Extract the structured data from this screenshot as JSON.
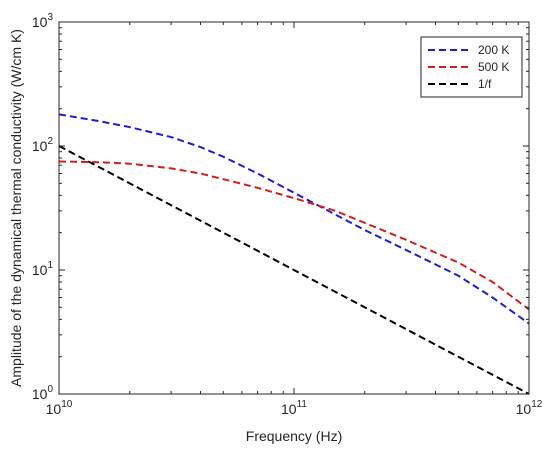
{
  "chart_data": {
    "type": "line",
    "title": "",
    "xlabel": "Frequency (Hz)",
    "ylabel": "Amplitude of the dynamical thermal conductivity (W/cm K)",
    "xscale": "log",
    "yscale": "log",
    "xlim": [
      10000000000.0,
      1000000000000.0
    ],
    "ylim": [
      1,
      1000
    ],
    "grid": false,
    "legend_position": "top-right",
    "x_ticks": [
      {
        "base": "10",
        "exp": "10",
        "value": 10000000000.0
      },
      {
        "base": "10",
        "exp": "11",
        "value": 100000000000.0
      },
      {
        "base": "10",
        "exp": "12",
        "value": 1000000000000.0
      }
    ],
    "y_ticks": [
      {
        "base": "10",
        "exp": "0",
        "value": 1
      },
      {
        "base": "10",
        "exp": "1",
        "value": 10
      },
      {
        "base": "10",
        "exp": "2",
        "value": 100
      },
      {
        "base": "10",
        "exp": "3",
        "value": 1000
      }
    ],
    "series": [
      {
        "name": "200 K",
        "color": "#1f1fd0",
        "style": "dashed",
        "points": [
          [
            10000000000.0,
            180
          ],
          [
            15000000000.0,
            158
          ],
          [
            20000000000.0,
            142
          ],
          [
            30000000000.0,
            118
          ],
          [
            40000000000.0,
            98
          ],
          [
            50000000000.0,
            82
          ],
          [
            70000000000.0,
            60
          ],
          [
            100000000000.0,
            42
          ],
          [
            150000000000.0,
            28
          ],
          [
            200000000000.0,
            21
          ],
          [
            300000000000.0,
            14.5
          ],
          [
            500000000000.0,
            9
          ],
          [
            700000000000.0,
            6
          ],
          [
            1000000000000.0,
            3.7
          ]
        ]
      },
      {
        "name": "500 K",
        "color": "#d01f1f",
        "style": "dashed",
        "points": [
          [
            10000000000.0,
            75
          ],
          [
            15000000000.0,
            74
          ],
          [
            20000000000.0,
            72
          ],
          [
            30000000000.0,
            66
          ],
          [
            40000000000.0,
            60
          ],
          [
            50000000000.0,
            54
          ],
          [
            70000000000.0,
            46
          ],
          [
            100000000000.0,
            38
          ],
          [
            150000000000.0,
            30
          ],
          [
            200000000000.0,
            24
          ],
          [
            300000000000.0,
            17.5
          ],
          [
            500000000000.0,
            11.5
          ],
          [
            700000000000.0,
            8
          ],
          [
            1000000000000.0,
            4.8
          ]
        ]
      },
      {
        "name": "1/f",
        "color": "#000000",
        "style": "dashed",
        "points": [
          [
            10000000000.0,
            100
          ],
          [
            1000000000000.0,
            1
          ]
        ]
      }
    ]
  }
}
